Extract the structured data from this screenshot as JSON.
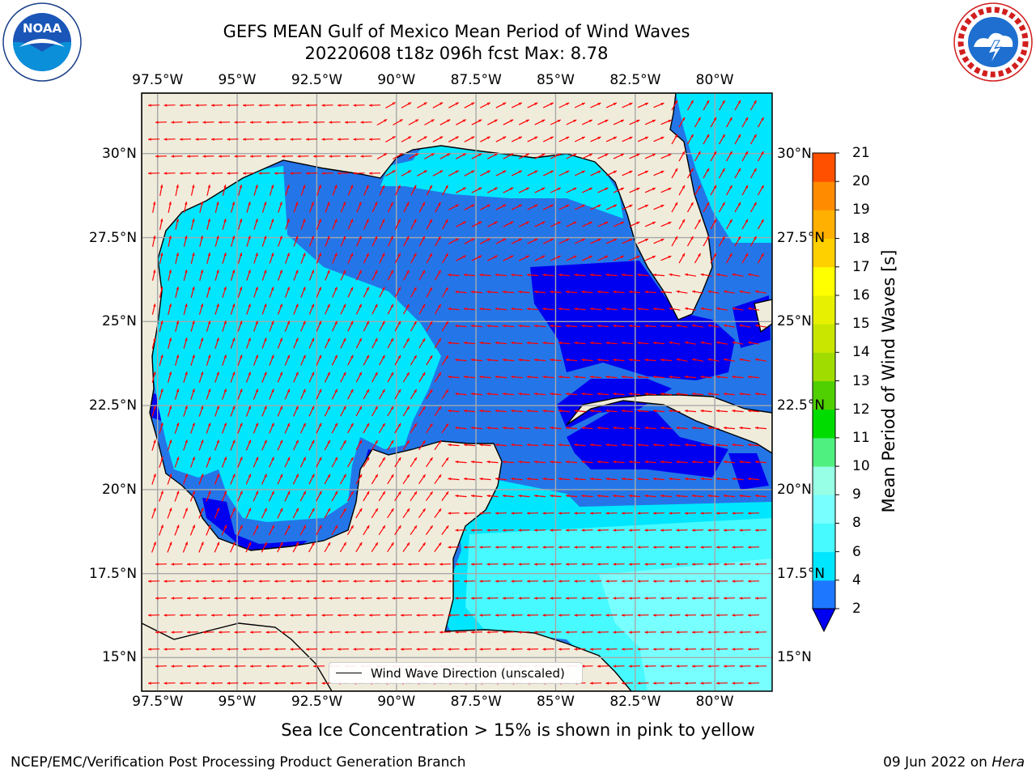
{
  "header": {
    "title_line1": "GEFS MEAN Gulf of Mexico Mean Period of Wind Waves",
    "title_line2": "20220608 t18z 096h fcst   Max: 8.78"
  },
  "logos": {
    "left": "noaa-logo",
    "right": "nws-logo"
  },
  "map": {
    "longitude_labels": [
      "97.5°W",
      "95°W",
      "92.5°W",
      "90°W",
      "87.5°W",
      "85°W",
      "82.5°W",
      "80°W"
    ],
    "latitude_labels": [
      "30°N",
      "27.5°N",
      "25°N",
      "22.5°N",
      "20°N",
      "17.5°N",
      "15°N"
    ],
    "extent": {
      "lon": [
        -98.0,
        -78.2
      ],
      "lat": [
        14.0,
        31.8
      ]
    },
    "land_color": "#efecdc",
    "arrow_color": "#ff0000",
    "legend_label": "Wind Wave Direction (unscaled)"
  },
  "colorbar": {
    "title": "Mean Period of Wind Waves [s]",
    "tick_labels": [
      "21",
      "20",
      "19",
      "18",
      "17",
      "16",
      "15",
      "14",
      "13",
      "12",
      "11",
      "10",
      "9",
      "8",
      "6",
      "4",
      "2"
    ],
    "levels": [
      2,
      4,
      6,
      8,
      9,
      10,
      11,
      12,
      13,
      14,
      15,
      16,
      17,
      18,
      19,
      20,
      21
    ],
    "colors": [
      "#1e78ff",
      "#00e6ff",
      "#46faff",
      "#78ffff",
      "#96ffe6",
      "#50f080",
      "#00dc00",
      "#50d000",
      "#a0dc00",
      "#c8e600",
      "#e6f000",
      "#ffff00",
      "#ffd000",
      "#ffb000",
      "#ff8c00",
      "#ff5000",
      "#ff2800",
      "#ff0000"
    ],
    "under_color": "#0000f0"
  },
  "caption": "Sea Ice Concentration > 15% is shown in pink to yellow",
  "footer": {
    "left": "NCEP/EMC/Verification Post Processing Product Generation Branch",
    "right_prefix": "09 Jun 2022 on",
    "right_host": "Hera"
  }
}
